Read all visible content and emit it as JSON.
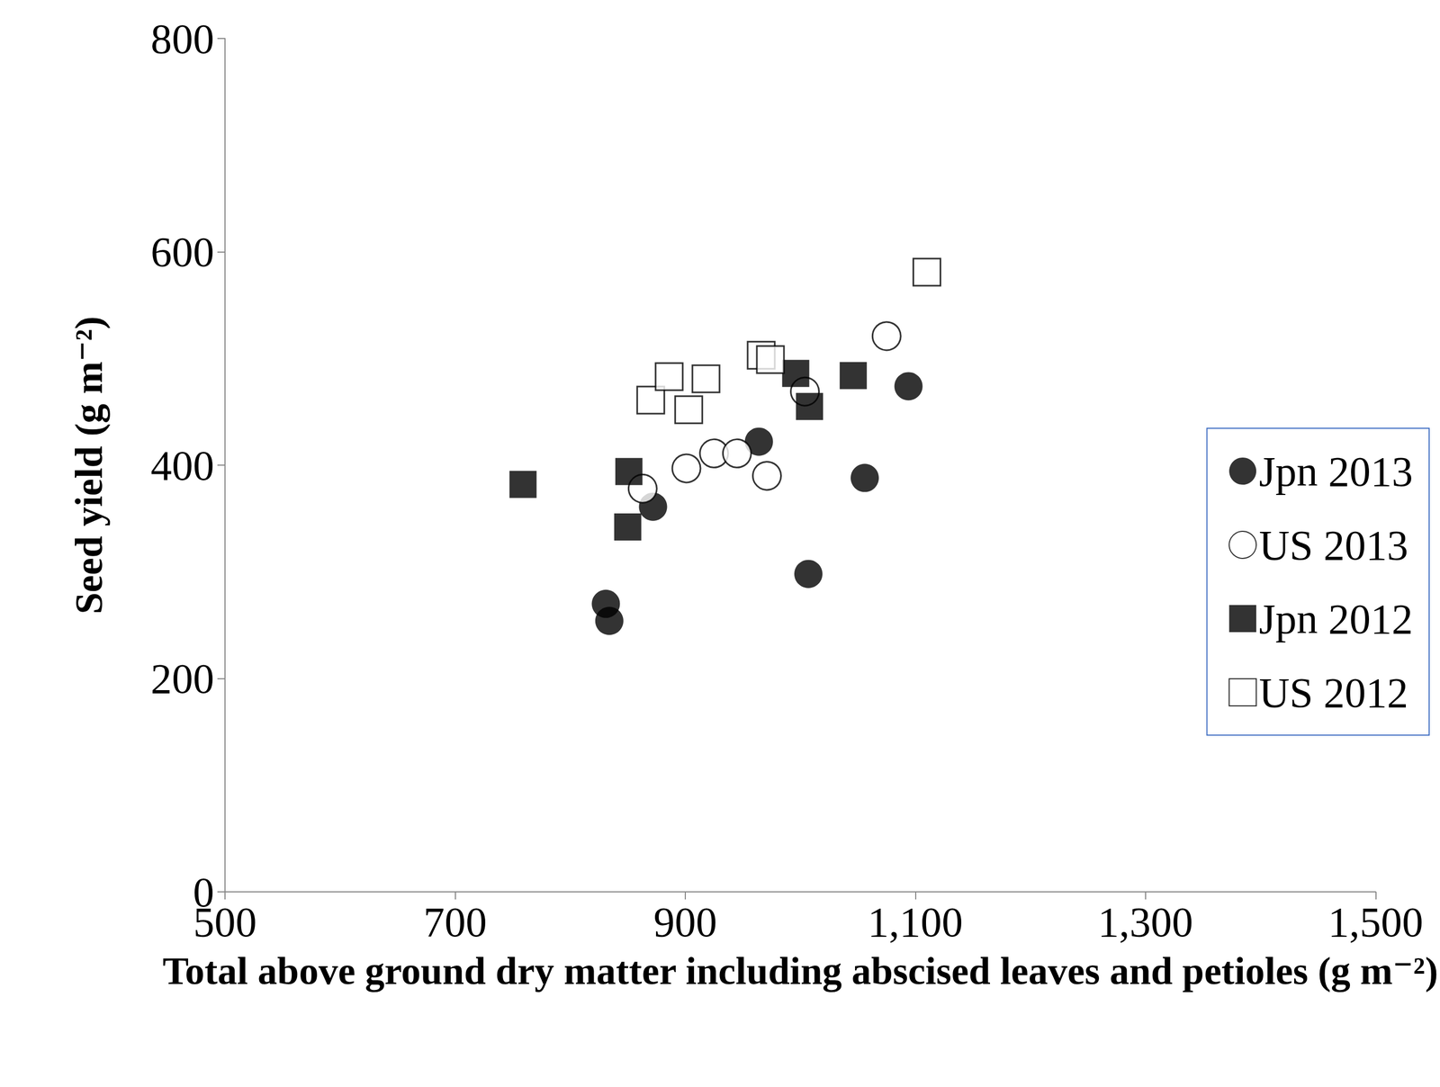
{
  "chart_data": {
    "type": "scatter",
    "xlabel": "Total above ground dry matter including abscised leaves and petioles (g m⁻²)",
    "ylabel": "Seed yield (g m⁻²)",
    "xlim": [
      500,
      1500
    ],
    "xticks": [
      500,
      700,
      900,
      1100,
      1300,
      1500
    ],
    "ylim": [
      0,
      800
    ],
    "yticks": [
      0,
      200,
      400,
      600,
      800
    ],
    "grid": false,
    "legend": "right",
    "series": [
      {
        "name": "Jpn 2013",
        "color": "#000000",
        "marker": "circle",
        "x": [
          964,
          1094,
          1056,
          872,
          1007,
          831,
          834
        ],
        "values": [
          422,
          474,
          388,
          361,
          298,
          270,
          254
        ]
      },
      {
        "name": "US 2013",
        "color": "#000000",
        "marker": "circle-open",
        "x": [
          863,
          901,
          925,
          945,
          971,
          1004,
          1075
        ],
        "values": [
          378,
          397,
          411,
          411,
          390,
          469,
          521
        ]
      },
      {
        "name": "Jpn 2012",
        "color": "#000000",
        "marker": "square",
        "x": [
          759,
          851,
          850,
          996,
          1008,
          1046
        ],
        "values": [
          382,
          394,
          342,
          486,
          455,
          484
        ]
      },
      {
        "name": "US 2012",
        "color": "#000000",
        "marker": "square-open",
        "x": [
          870,
          886,
          903,
          918,
          966,
          974,
          1110
        ],
        "values": [
          461,
          483,
          452,
          481,
          503,
          499,
          581
        ]
      }
    ]
  }
}
